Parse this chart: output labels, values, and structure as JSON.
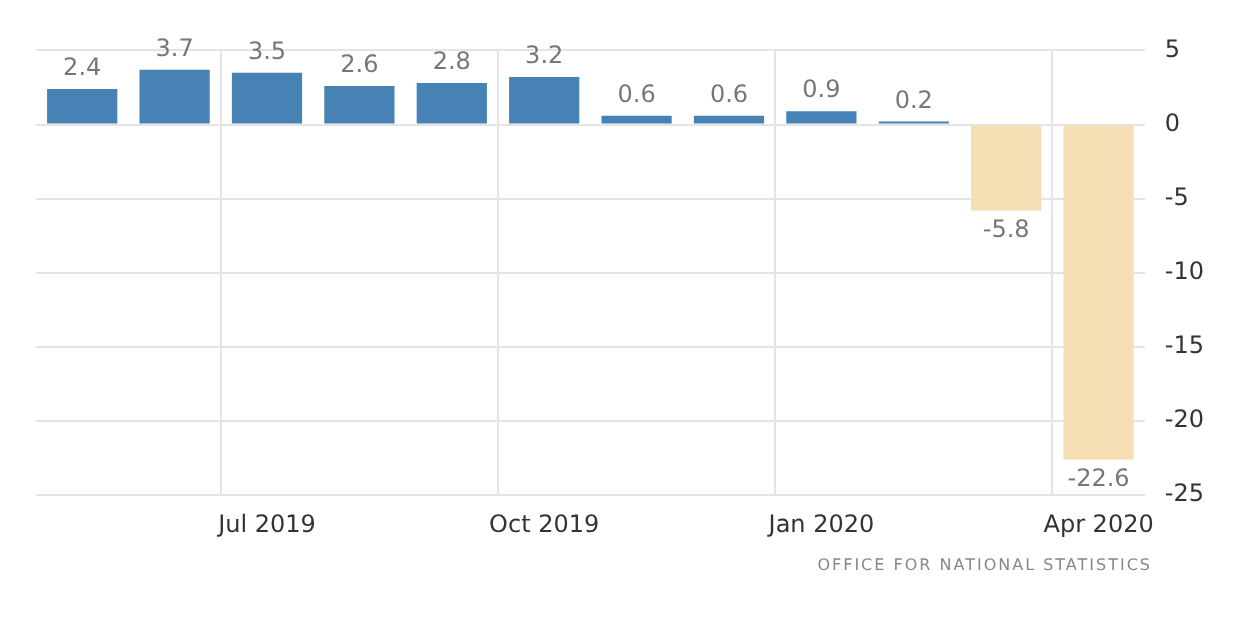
{
  "chart_data": {
    "type": "bar",
    "categories": [
      null,
      null,
      "Jul 2019",
      null,
      null,
      "Oct 2019",
      null,
      null,
      "Jan 2020",
      null,
      null,
      "Apr 2020"
    ],
    "values": [
      2.4,
      3.7,
      3.5,
      2.6,
      2.8,
      3.2,
      0.6,
      0.6,
      0.9,
      0.2,
      -5.8,
      -22.6
    ],
    "colors": [
      "#4682b4",
      "#4682b4",
      "#4682b4",
      "#4682b4",
      "#4682b4",
      "#4682b4",
      "#4682b4",
      "#4682b4",
      "#4682b4",
      "#4682b4",
      "#f5deb3",
      "#f5deb3"
    ],
    "ylim": [
      -25,
      5
    ],
    "yticks": [
      5,
      0,
      -5,
      -10,
      -15,
      -20,
      -25
    ],
    "grid": true,
    "data_labels": true,
    "annotations": [
      "OFFICE FOR NATIONAL STATISTICS"
    ]
  }
}
